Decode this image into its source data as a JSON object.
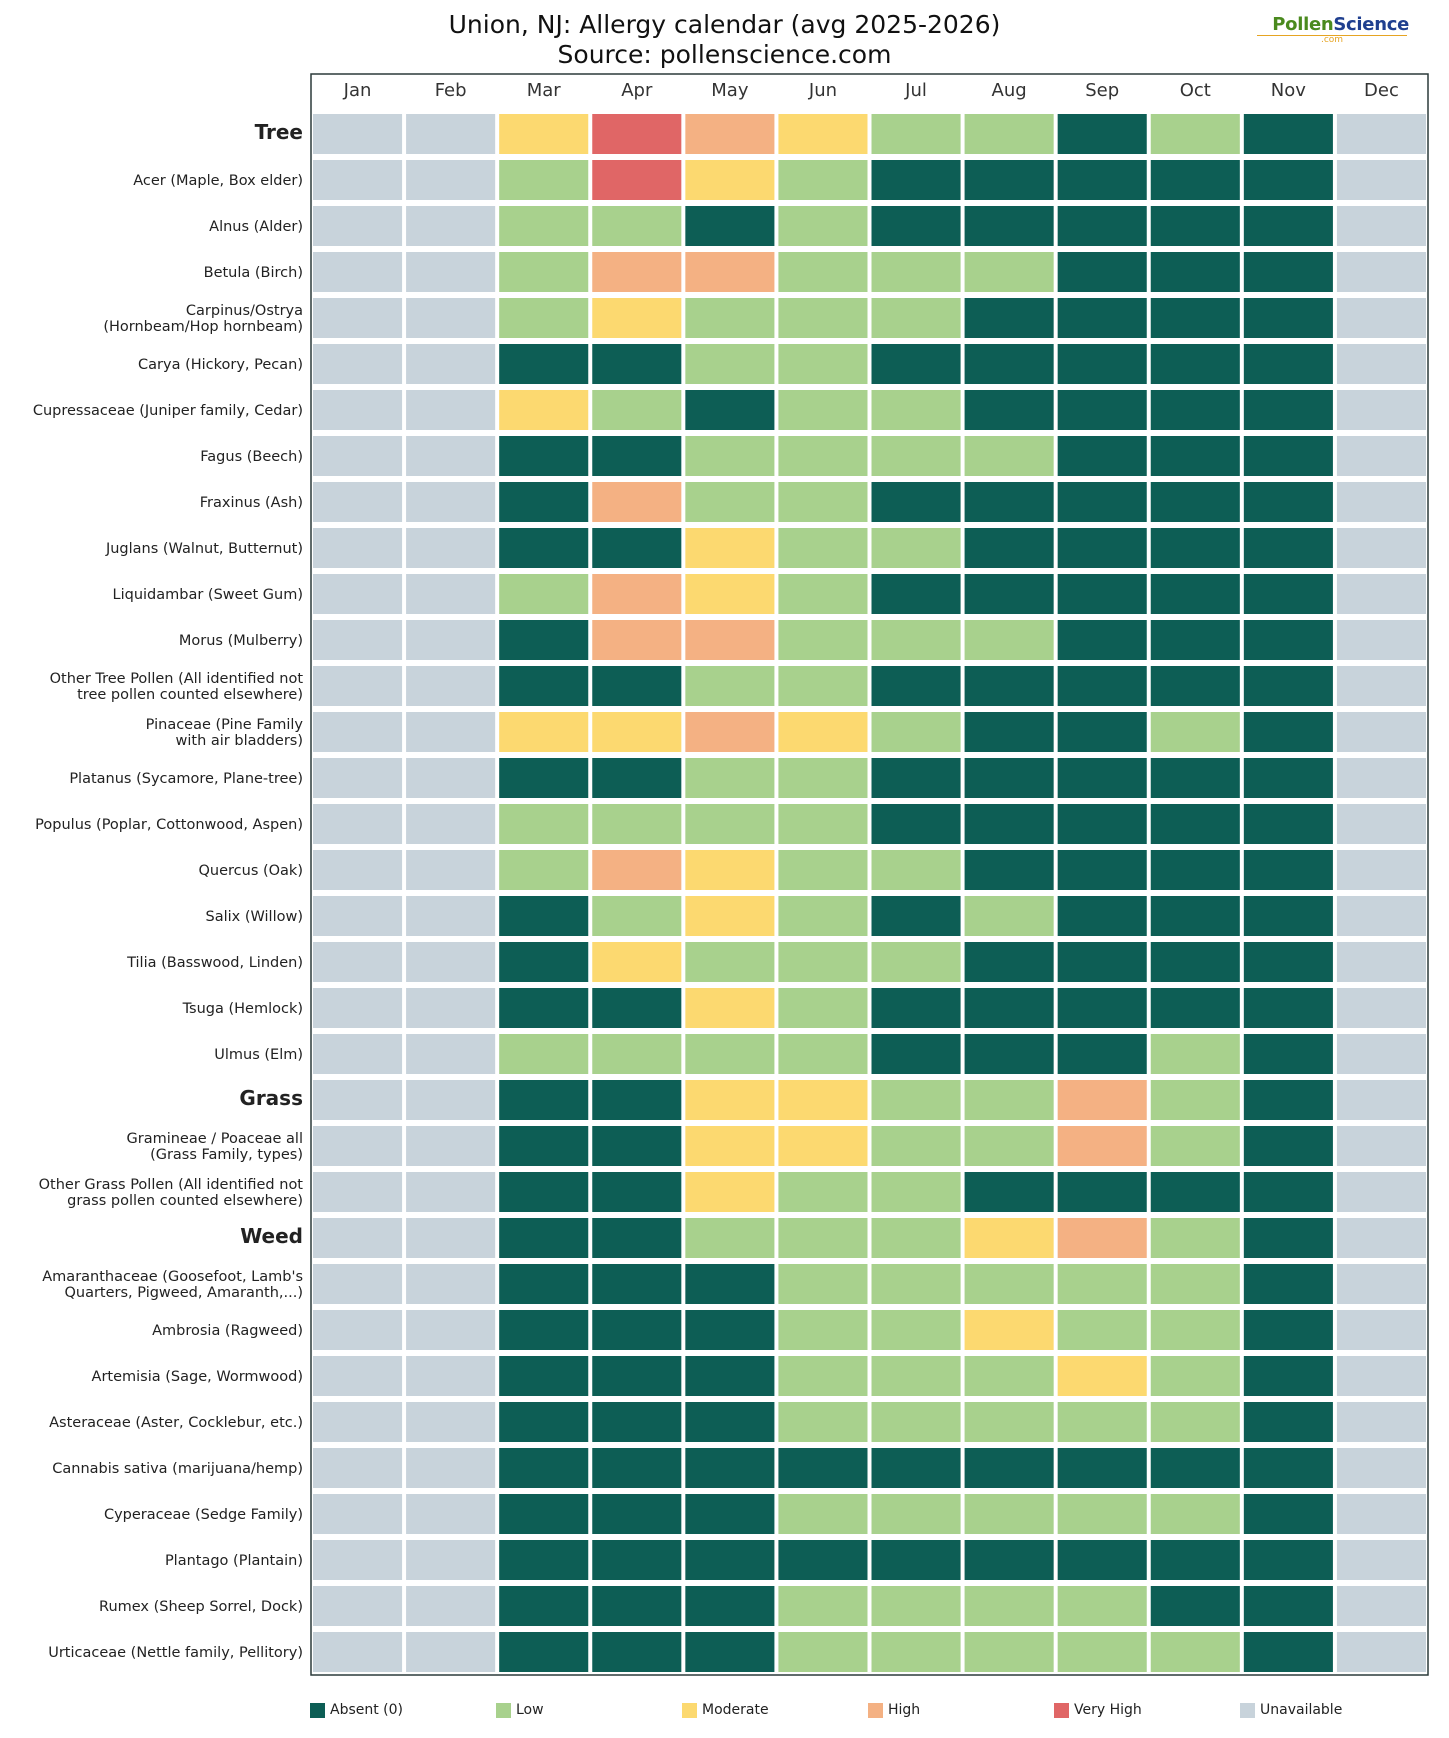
{
  "header": {
    "title_line1": "Union, NJ: Allergy calendar (avg 2025-2026)",
    "title_line2": "Source: pollenscience.com",
    "logo_pollen": "Pollen",
    "logo_science": "Science",
    "logo_com": ".com"
  },
  "colors": {
    "absent": "#0d5e55",
    "low": "#a8d18d",
    "moderate": "#fcd970",
    "high": "#f4b183",
    "very_high": "#e06666",
    "unavailable": "#c8d3db"
  },
  "legend": [
    {
      "key": "absent",
      "label": "Absent (0)"
    },
    {
      "key": "low",
      "label": "Low"
    },
    {
      "key": "moderate",
      "label": "Moderate"
    },
    {
      "key": "high",
      "label": "High"
    },
    {
      "key": "very_high",
      "label": "Very High"
    },
    {
      "key": "unavailable",
      "label": "Unavailable"
    }
  ],
  "chart_data": {
    "type": "heatmap",
    "title": "Union, NJ: Allergy calendar (avg 2025-2026)",
    "subtitle": "Source: pollenscience.com",
    "x_categories": [
      "Jan",
      "Feb",
      "Mar",
      "Apr",
      "May",
      "Jun",
      "Jul",
      "Aug",
      "Sep",
      "Oct",
      "Nov",
      "Dec"
    ],
    "levels": [
      "absent",
      "low",
      "moderate",
      "high",
      "very_high",
      "unavailable"
    ],
    "legend_placement": "bottom",
    "rows": [
      {
        "label": "Tree",
        "group": true,
        "months": [
          "unavailable",
          "unavailable",
          "moderate",
          "very_high",
          "high",
          "moderate",
          "low",
          "low",
          "absent",
          "low",
          "absent",
          "unavailable"
        ]
      },
      {
        "label": "Acer (Maple, Box elder)",
        "months": [
          "unavailable",
          "unavailable",
          "low",
          "very_high",
          "moderate",
          "low",
          "absent",
          "absent",
          "absent",
          "absent",
          "absent",
          "unavailable"
        ]
      },
      {
        "label": "Alnus (Alder)",
        "months": [
          "unavailable",
          "unavailable",
          "low",
          "low",
          "absent",
          "low",
          "absent",
          "absent",
          "absent",
          "absent",
          "absent",
          "unavailable"
        ]
      },
      {
        "label": "Betula (Birch)",
        "months": [
          "unavailable",
          "unavailable",
          "low",
          "high",
          "high",
          "low",
          "low",
          "low",
          "absent",
          "absent",
          "absent",
          "unavailable"
        ]
      },
      {
        "label": "Carpinus/Ostrya (Hornbeam/Hop hornbeam)",
        "months": [
          "unavailable",
          "unavailable",
          "low",
          "moderate",
          "low",
          "low",
          "low",
          "absent",
          "absent",
          "absent",
          "absent",
          "unavailable"
        ]
      },
      {
        "label": "Carya (Hickory, Pecan)",
        "months": [
          "unavailable",
          "unavailable",
          "absent",
          "absent",
          "low",
          "low",
          "absent",
          "absent",
          "absent",
          "absent",
          "absent",
          "unavailable"
        ]
      },
      {
        "label": "Cupressaceae (Juniper family, Cedar)",
        "months": [
          "unavailable",
          "unavailable",
          "moderate",
          "low",
          "absent",
          "low",
          "low",
          "absent",
          "absent",
          "absent",
          "absent",
          "unavailable"
        ]
      },
      {
        "label": "Fagus (Beech)",
        "months": [
          "unavailable",
          "unavailable",
          "absent",
          "absent",
          "low",
          "low",
          "low",
          "low",
          "absent",
          "absent",
          "absent",
          "unavailable"
        ]
      },
      {
        "label": "Fraxinus (Ash)",
        "months": [
          "unavailable",
          "unavailable",
          "absent",
          "high",
          "low",
          "low",
          "absent",
          "absent",
          "absent",
          "absent",
          "absent",
          "unavailable"
        ]
      },
      {
        "label": "Juglans (Walnut, Butternut)",
        "months": [
          "unavailable",
          "unavailable",
          "absent",
          "absent",
          "moderate",
          "low",
          "low",
          "absent",
          "absent",
          "absent",
          "absent",
          "unavailable"
        ]
      },
      {
        "label": "Liquidambar (Sweet Gum)",
        "months": [
          "unavailable",
          "unavailable",
          "low",
          "high",
          "moderate",
          "low",
          "absent",
          "absent",
          "absent",
          "absent",
          "absent",
          "unavailable"
        ]
      },
      {
        "label": "Morus (Mulberry)",
        "months": [
          "unavailable",
          "unavailable",
          "absent",
          "high",
          "high",
          "low",
          "low",
          "low",
          "absent",
          "absent",
          "absent",
          "unavailable"
        ]
      },
      {
        "label": "Other Tree Pollen (All identified tree pollen not counted elsewhere)",
        "months": [
          "unavailable",
          "unavailable",
          "absent",
          "absent",
          "low",
          "low",
          "absent",
          "absent",
          "absent",
          "absent",
          "absent",
          "unavailable"
        ]
      },
      {
        "label": "Pinaceae (Pine Family with air bladders)",
        "months": [
          "unavailable",
          "unavailable",
          "moderate",
          "moderate",
          "high",
          "moderate",
          "low",
          "absent",
          "absent",
          "low",
          "absent",
          "unavailable"
        ]
      },
      {
        "label": "Platanus (Sycamore, Plane-tree)",
        "months": [
          "unavailable",
          "unavailable",
          "absent",
          "absent",
          "low",
          "low",
          "absent",
          "absent",
          "absent",
          "absent",
          "absent",
          "unavailable"
        ]
      },
      {
        "label": "Populus (Poplar, Cottonwood, Aspen)",
        "months": [
          "unavailable",
          "unavailable",
          "low",
          "low",
          "low",
          "low",
          "absent",
          "absent",
          "absent",
          "absent",
          "absent",
          "unavailable"
        ]
      },
      {
        "label": "Quercus (Oak)",
        "months": [
          "unavailable",
          "unavailable",
          "low",
          "high",
          "moderate",
          "low",
          "low",
          "absent",
          "absent",
          "absent",
          "absent",
          "unavailable"
        ]
      },
      {
        "label": "Salix (Willow)",
        "months": [
          "unavailable",
          "unavailable",
          "absent",
          "low",
          "moderate",
          "low",
          "absent",
          "low",
          "absent",
          "absent",
          "absent",
          "unavailable"
        ]
      },
      {
        "label": "Tilia (Basswood, Linden)",
        "months": [
          "unavailable",
          "unavailable",
          "absent",
          "moderate",
          "low",
          "low",
          "low",
          "absent",
          "absent",
          "absent",
          "absent",
          "unavailable"
        ]
      },
      {
        "label": "Tsuga (Hemlock)",
        "months": [
          "unavailable",
          "unavailable",
          "absent",
          "absent",
          "moderate",
          "low",
          "absent",
          "absent",
          "absent",
          "absent",
          "absent",
          "unavailable"
        ]
      },
      {
        "label": "Ulmus (Elm)",
        "months": [
          "unavailable",
          "unavailable",
          "low",
          "low",
          "low",
          "low",
          "absent",
          "absent",
          "absent",
          "low",
          "absent",
          "unavailable"
        ]
      },
      {
        "label": "Grass",
        "group": true,
        "months": [
          "unavailable",
          "unavailable",
          "absent",
          "absent",
          "moderate",
          "moderate",
          "low",
          "low",
          "high",
          "low",
          "absent",
          "unavailable"
        ]
      },
      {
        "label": "Gramineae / Poaceae (Grass Family, all types)",
        "months": [
          "unavailable",
          "unavailable",
          "absent",
          "absent",
          "moderate",
          "moderate",
          "low",
          "low",
          "high",
          "low",
          "absent",
          "unavailable"
        ]
      },
      {
        "label": "Other Grass Pollen (All identified grass pollen not counted elsewhere)",
        "months": [
          "unavailable",
          "unavailable",
          "absent",
          "absent",
          "moderate",
          "low",
          "low",
          "absent",
          "absent",
          "absent",
          "absent",
          "unavailable"
        ]
      },
      {
        "label": "Weed",
        "group": true,
        "months": [
          "unavailable",
          "unavailable",
          "absent",
          "absent",
          "low",
          "low",
          "low",
          "moderate",
          "high",
          "low",
          "absent",
          "unavailable"
        ]
      },
      {
        "label": "Amaranthaceae (Goosefoot, Lamb's Quarters, Pigweed, Amaranth,...)",
        "months": [
          "unavailable",
          "unavailable",
          "absent",
          "absent",
          "absent",
          "low",
          "low",
          "low",
          "low",
          "low",
          "absent",
          "unavailable"
        ]
      },
      {
        "label": "Ambrosia (Ragweed)",
        "months": [
          "unavailable",
          "unavailable",
          "absent",
          "absent",
          "absent",
          "low",
          "low",
          "moderate",
          "low",
          "low",
          "absent",
          "unavailable"
        ]
      },
      {
        "label": "Artemisia (Sage, Wormwood)",
        "months": [
          "unavailable",
          "unavailable",
          "absent",
          "absent",
          "absent",
          "low",
          "low",
          "low",
          "moderate",
          "low",
          "absent",
          "unavailable"
        ]
      },
      {
        "label": "Asteraceae (Aster, Cocklebur, etc.)",
        "months": [
          "unavailable",
          "unavailable",
          "absent",
          "absent",
          "absent",
          "low",
          "low",
          "low",
          "low",
          "low",
          "absent",
          "unavailable"
        ]
      },
      {
        "label": "Cannabis sativa (marijuana/hemp)",
        "months": [
          "unavailable",
          "unavailable",
          "absent",
          "absent",
          "absent",
          "absent",
          "absent",
          "absent",
          "absent",
          "absent",
          "absent",
          "unavailable"
        ]
      },
      {
        "label": "Cyperaceae (Sedge Family)",
        "months": [
          "unavailable",
          "unavailable",
          "absent",
          "absent",
          "absent",
          "low",
          "low",
          "low",
          "low",
          "low",
          "absent",
          "unavailable"
        ]
      },
      {
        "label": "Plantago (Plantain)",
        "months": [
          "unavailable",
          "unavailable",
          "absent",
          "absent",
          "absent",
          "absent",
          "absent",
          "absent",
          "absent",
          "absent",
          "absent",
          "unavailable"
        ]
      },
      {
        "label": "Rumex (Sheep Sorrel, Dock)",
        "months": [
          "unavailable",
          "unavailable",
          "absent",
          "absent",
          "absent",
          "low",
          "low",
          "low",
          "low",
          "absent",
          "absent",
          "unavailable"
        ]
      },
      {
        "label": "Urticaceae (Nettle family, Pellitory)",
        "months": [
          "unavailable",
          "unavailable",
          "absent",
          "absent",
          "absent",
          "low",
          "low",
          "low",
          "low",
          "low",
          "absent",
          "unavailable"
        ]
      }
    ]
  }
}
